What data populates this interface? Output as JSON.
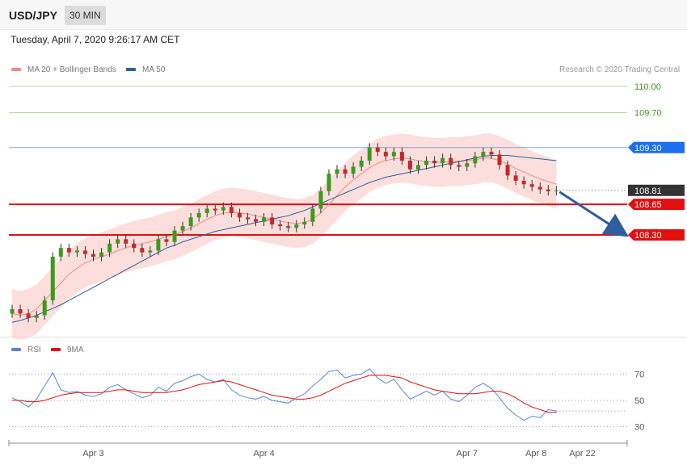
{
  "header": {
    "pair": "USD/JPY",
    "timeframe": "30 MIN",
    "datetime": "Tuesday, April 7, 2020 9:26:17 AM CET"
  },
  "legend": {
    "price": [
      {
        "label": "MA 20 + Bollinger Bands",
        "color": "#f28b82"
      },
      {
        "label": "MA 50",
        "color": "#2f5d9e"
      }
    ],
    "rsi": [
      {
        "label": "RSI",
        "color": "#5b84d6"
      },
      {
        "label": "9MA",
        "color": "#e01010"
      }
    ]
  },
  "copyright": "Research © 2020 Trading Central",
  "chart_data": {
    "type": "line",
    "price_range": [
      107.2,
      110.12
    ],
    "levels": [
      {
        "label": "110.00",
        "value": 110.0,
        "kind": "target",
        "color": "#3a9b1c"
      },
      {
        "label": "109.70",
        "value": 109.7,
        "kind": "target",
        "color": "#3a9b1c"
      },
      {
        "label": "109.30",
        "value": 109.3,
        "kind": "resistance",
        "color": "#1e6ef0"
      },
      {
        "label": "108.81",
        "value": 108.81,
        "kind": "last-price",
        "color": "#333333"
      },
      {
        "label": "108.65",
        "value": 108.65,
        "kind": "pivot",
        "color": "#e01010"
      },
      {
        "label": "108.30",
        "value": 108.3,
        "kind": "support",
        "color": "#e01010"
      }
    ],
    "close_series": [
      107.45,
      107.4,
      107.35,
      107.38,
      107.55,
      108.05,
      108.15,
      108.1,
      108.12,
      108.08,
      108.05,
      108.1,
      108.2,
      108.25,
      108.2,
      108.15,
      108.1,
      108.12,
      108.25,
      108.22,
      108.35,
      108.4,
      108.5,
      108.55,
      108.6,
      108.58,
      108.62,
      108.55,
      108.5,
      108.48,
      108.45,
      108.5,
      108.42,
      108.4,
      108.38,
      108.42,
      108.45,
      108.6,
      108.8,
      109.0,
      109.05,
      109.0,
      109.08,
      109.15,
      109.3,
      109.25,
      109.2,
      109.25,
      109.15,
      109.05,
      109.1,
      109.15,
      109.12,
      109.18,
      109.1,
      109.08,
      109.12,
      109.2,
      109.25,
      109.22,
      109.1,
      108.98,
      108.92,
      108.88,
      108.85,
      108.82,
      108.8,
      108.81
    ],
    "ma20_series": [
      107.4,
      107.38,
      107.4,
      107.45,
      107.55,
      107.65,
      107.75,
      107.85,
      107.92,
      107.98,
      108.02,
      108.05,
      108.08,
      108.12,
      108.15,
      108.18,
      108.2,
      108.22,
      108.25,
      108.28,
      108.3,
      108.34,
      108.38,
      108.43,
      108.48,
      108.52,
      108.55,
      108.56,
      108.55,
      108.54,
      108.52,
      108.5,
      108.48,
      108.46,
      108.44,
      108.43,
      108.44,
      108.48,
      108.55,
      108.65,
      108.75,
      108.85,
      108.93,
      109.0,
      109.07,
      109.12,
      109.15,
      109.17,
      109.18,
      109.17,
      109.15,
      109.14,
      109.13,
      109.13,
      109.14,
      109.14,
      109.15,
      109.16,
      109.18,
      109.18,
      109.15,
      109.11,
      109.06,
      109.02,
      108.98,
      108.94,
      108.91,
      108.88
    ],
    "ma50_series": [
      107.3,
      107.32,
      107.35,
      107.38,
      107.42,
      107.46,
      107.5,
      107.55,
      107.6,
      107.65,
      107.7,
      107.75,
      107.8,
      107.85,
      107.9,
      107.95,
      108.0,
      108.05,
      108.1,
      108.15,
      108.18,
      108.22,
      108.25,
      108.28,
      108.31,
      108.34,
      108.36,
      108.38,
      108.4,
      108.42,
      108.44,
      108.46,
      108.48,
      108.5,
      108.52,
      108.55,
      108.58,
      108.62,
      108.66,
      108.7,
      108.74,
      108.78,
      108.82,
      108.86,
      108.9,
      108.93,
      108.96,
      108.98,
      109.0,
      109.02,
      109.04,
      109.06,
      109.08,
      109.1,
      109.12,
      109.14,
      109.16,
      109.18,
      109.2,
      109.21,
      109.21,
      109.21,
      109.2,
      109.19,
      109.18,
      109.17,
      109.16,
      109.15
    ],
    "bollinger_width": 0.28,
    "rsi_series": [
      52,
      49,
      45,
      51,
      61,
      71,
      58,
      56,
      57,
      54,
      53,
      55,
      60,
      62,
      58,
      55,
      52,
      54,
      60,
      57,
      63,
      65,
      68,
      70,
      66,
      64,
      66,
      58,
      54,
      52,
      51,
      53,
      50,
      49,
      48,
      52,
      55,
      61,
      66,
      72,
      73,
      67,
      69,
      70,
      74,
      67,
      63,
      66,
      58,
      51,
      54,
      57,
      54,
      57,
      51,
      49,
      54,
      60,
      63,
      59,
      52,
      44,
      39,
      35,
      38,
      37,
      43,
      42
    ],
    "rsi_ma_series": [
      50,
      50,
      49,
      49,
      50,
      52,
      54,
      55,
      56,
      56,
      56,
      56,
      57,
      58,
      58,
      57,
      56,
      56,
      56,
      56,
      57,
      58,
      60,
      62,
      63,
      64,
      65,
      64,
      62,
      60,
      58,
      56,
      54,
      53,
      52,
      51,
      51,
      52,
      54,
      57,
      60,
      63,
      65,
      67,
      69,
      69,
      69,
      68,
      67,
      64,
      62,
      60,
      58,
      57,
      56,
      55,
      55,
      55,
      56,
      57,
      57,
      55,
      52,
      48,
      45,
      43,
      41,
      41
    ],
    "rsi_range": [
      20,
      80
    ],
    "rsi_ticks": [
      70,
      50,
      30
    ],
    "x_ticks": [
      {
        "label": "Apr 3",
        "index": 10
      },
      {
        "label": "Apr 4",
        "index": 31
      },
      {
        "label": "Apr 7",
        "index": 56
      },
      {
        "label": "Apr 8",
        "index": 64.5
      },
      {
        "label": "Apr 22",
        "index": 70.2
      }
    ],
    "projection": {
      "from": 108.81,
      "to": 108.3
    }
  }
}
